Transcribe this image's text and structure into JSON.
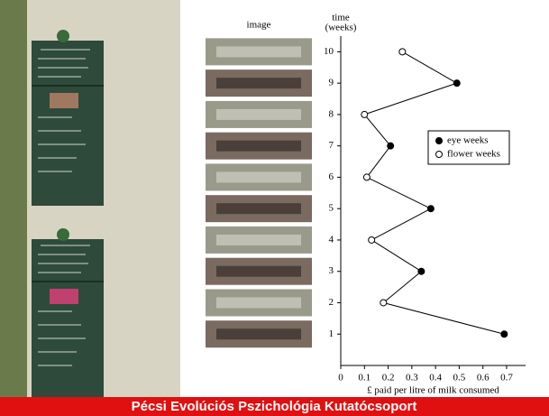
{
  "image_column": {
    "label": "image"
  },
  "banner": "Pécsi Evolúciós Pszichológia Kutatócsoport",
  "chart_data": {
    "type": "scatter",
    "ylabel": [
      "time",
      "(weeks)"
    ],
    "xlabel": "£ paid per litre of milk consumed",
    "xlim": [
      0,
      0.78
    ],
    "xticks": [
      0,
      0.1,
      0.2,
      0.3,
      0.4,
      0.5,
      0.6,
      0.7
    ],
    "ylim": [
      0,
      10.5
    ],
    "yticks": [
      1,
      2,
      3,
      4,
      5,
      6,
      7,
      8,
      9,
      10
    ],
    "grid": false,
    "series": [
      {
        "name": "eye weeks",
        "color": "#000000",
        "y": [
          1,
          3,
          5,
          7,
          9
        ],
        "x": [
          0.69,
          0.34,
          0.38,
          0.21,
          0.49
        ]
      },
      {
        "name": "flower weeks",
        "color": "#ffffff",
        "y": [
          2,
          4,
          6,
          8,
          10
        ],
        "x": [
          0.18,
          0.13,
          0.11,
          0.1,
          0.26
        ]
      }
    ]
  }
}
